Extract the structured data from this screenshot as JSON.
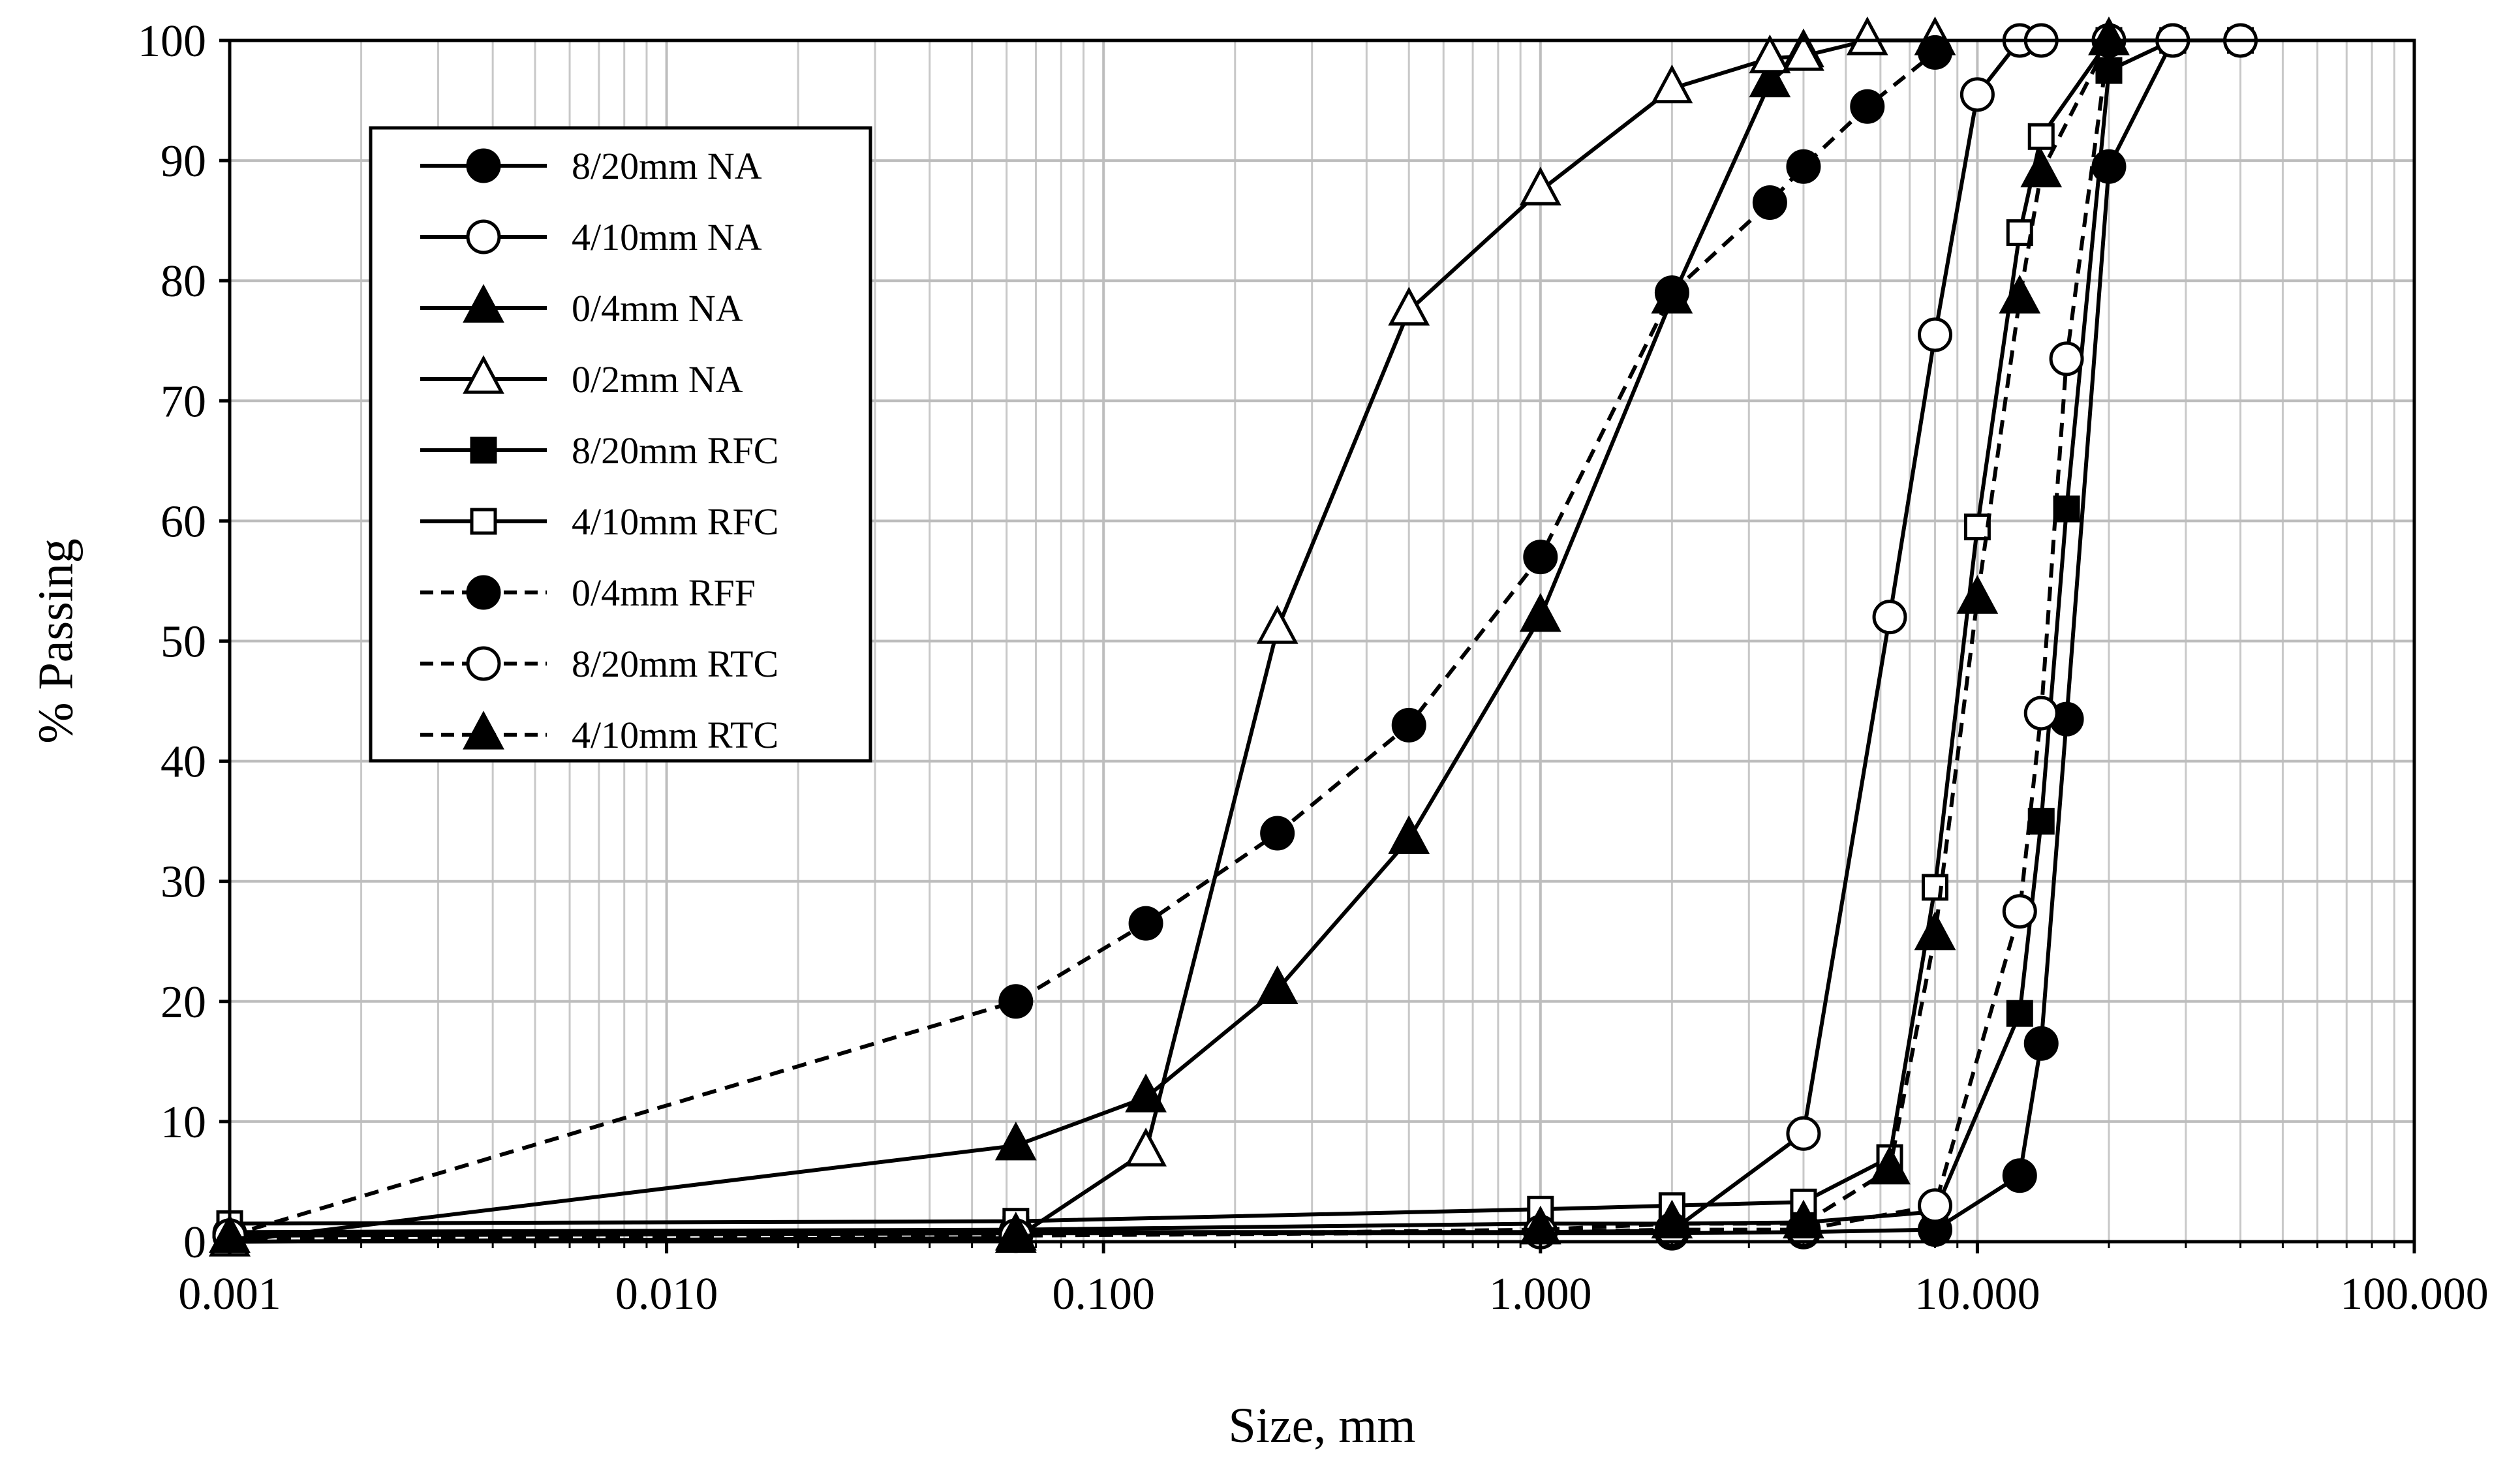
{
  "chart_data": {
    "type": "line",
    "xscale": "log",
    "xlim": [
      0.001,
      100
    ],
    "ylim": [
      0,
      100
    ],
    "grid": true,
    "xlabel": "Size, mm",
    "ylabel": "% Passing",
    "xticks": [
      0.001,
      0.01,
      0.1,
      1,
      10,
      100
    ],
    "xtick_labels": [
      "0.001",
      "0.010",
      "0.100",
      "1.000",
      "10.000",
      "100.000"
    ],
    "yticks": [
      0,
      10,
      20,
      30,
      40,
      50,
      60,
      70,
      80,
      90,
      100
    ],
    "ytick_labels": [
      "0",
      "10",
      "20",
      "30",
      "40",
      "50",
      "60",
      "70",
      "80",
      "90",
      "100"
    ],
    "legend_position": "top-left",
    "series": [
      {
        "name": "8/20mm NA",
        "marker": "circle",
        "fill": "filled",
        "dash": false,
        "x": [
          0.001,
          0.063,
          2,
          4,
          8,
          12.5,
          14,
          16,
          20,
          28
        ],
        "y": [
          0.5,
          0.7,
          0.7,
          0.8,
          1,
          5.5,
          16.5,
          43.5,
          89.5,
          100
        ]
      },
      {
        "name": "4/10mm NA",
        "marker": "circle",
        "fill": "open",
        "dash": false,
        "x": [
          0.001,
          0.063,
          1,
          2,
          4,
          6.3,
          8,
          10,
          12.5,
          14
        ],
        "y": [
          0.7,
          0.8,
          0.8,
          0.9,
          9,
          52,
          75.5,
          95.5,
          100,
          100
        ]
      },
      {
        "name": "0/4mm NA",
        "marker": "triangle",
        "fill": "filled",
        "dash": false,
        "x": [
          0.001,
          0.063,
          0.125,
          0.25,
          0.5,
          1,
          2,
          3.35,
          4
        ],
        "y": [
          0,
          8,
          12,
          21,
          33.5,
          52,
          78.5,
          96.5,
          99
        ]
      },
      {
        "name": "0/2mm NA",
        "marker": "triangle",
        "fill": "open",
        "dash": false,
        "x": [
          0.001,
          0.063,
          0.125,
          0.25,
          0.5,
          1,
          2,
          3.35,
          4,
          5.6,
          8
        ],
        "y": [
          0,
          0.3,
          7.5,
          51,
          77.5,
          87.5,
          96,
          98.5,
          98.7,
          100,
          100
        ]
      },
      {
        "name": "8/20mm RFC",
        "marker": "square",
        "fill": "filled",
        "dash": false,
        "x": [
          0.001,
          0.063,
          1,
          2,
          4,
          8,
          12.5,
          14,
          16,
          20,
          28
        ],
        "y": [
          0.8,
          1,
          1.5,
          1.5,
          1.6,
          2.5,
          19,
          35,
          61,
          97.5,
          100
        ]
      },
      {
        "name": "4/10mm RFC",
        "marker": "square",
        "fill": "open",
        "dash": false,
        "x": [
          0.001,
          0.063,
          1,
          2,
          4,
          6.3,
          8,
          10,
          12.5,
          14,
          20,
          28,
          40
        ],
        "y": [
          1.5,
          1.7,
          2.7,
          3,
          3.3,
          7,
          29.5,
          59.5,
          84,
          92,
          100,
          100,
          100
        ]
      },
      {
        "name": "0/4mm RFF",
        "marker": "circle",
        "fill": "filled",
        "dash": true,
        "x": [
          0.001,
          0.063,
          0.125,
          0.25,
          0.5,
          1,
          2,
          3.35,
          4,
          5.6,
          8
        ],
        "y": [
          0.5,
          20,
          26.5,
          34,
          43,
          57,
          79,
          86.5,
          89.5,
          94.5,
          99
        ]
      },
      {
        "name": "8/20mm RTC",
        "marker": "circle",
        "fill": "open",
        "dash": true,
        "x": [
          0.001,
          0.063,
          1,
          2,
          4,
          8,
          12.5,
          14,
          16,
          20,
          28,
          40
        ],
        "y": [
          0.5,
          0.5,
          0.8,
          1,
          1,
          3,
          27.5,
          44,
          73.5,
          100,
          100,
          100
        ]
      },
      {
        "name": "4/10mm RTC",
        "marker": "triangle",
        "fill": "filled",
        "dash": true,
        "x": [
          0.001,
          0.063,
          1,
          2,
          4,
          6.3,
          8,
          10,
          12.5,
          14,
          20
        ],
        "y": [
          0.3,
          0.5,
          1,
          1.5,
          1.5,
          6,
          25.5,
          53.5,
          78.5,
          89,
          100
        ]
      }
    ]
  }
}
